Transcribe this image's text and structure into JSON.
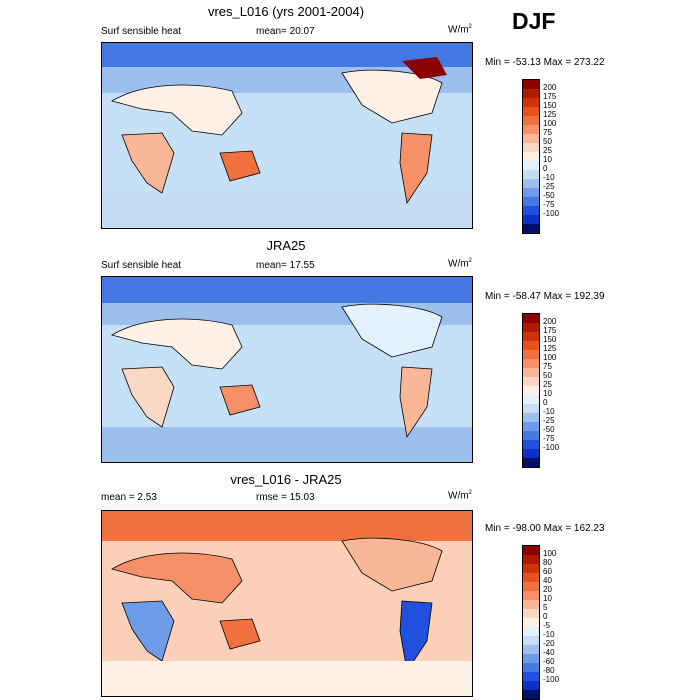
{
  "season": "DJF",
  "panels": [
    {
      "title": "vres_L016 (yrs 2001-2004)",
      "left_label": "Surf sensible heat",
      "center_label": "mean=  20.07",
      "units": "W/m",
      "units_sup": "2",
      "minmax": "Min = -53.13 Max = 273.22",
      "colorbar_labels": [
        "200",
        "175",
        "150",
        "125",
        "100",
        "75",
        "50",
        "25",
        "10",
        "0",
        "-10",
        "-25",
        "-50",
        "-75",
        "-100"
      ]
    },
    {
      "title": "JRA25",
      "left_label": "Surf sensible heat",
      "center_label": "mean=  17.55",
      "units": "W/m",
      "units_sup": "2",
      "minmax": "Min = -58.47 Max = 192.39",
      "colorbar_labels": [
        "200",
        "175",
        "150",
        "125",
        "100",
        "75",
        "50",
        "25",
        "10",
        "0",
        "-10",
        "-25",
        "-50",
        "-75",
        "-100"
      ]
    },
    {
      "title": "vres_L016 - JRA25",
      "left_label": "mean =   2.53",
      "center_label": "rmse =  15.03",
      "units": "W/m",
      "units_sup": "2",
      "minmax": "Min = -98.00 Max = 162.23",
      "colorbar_labels": [
        "100",
        "80",
        "60",
        "40",
        "20",
        "10",
        "5",
        "0",
        "-5",
        "-10",
        "-20",
        "-40",
        "-60",
        "-80",
        "-100"
      ]
    }
  ],
  "colors": {
    "absolute_scale": [
      "#8b0000",
      "#b01a00",
      "#d0300a",
      "#e8501e",
      "#f07040",
      "#f59068",
      "#f8b898",
      "#fbd8c4",
      "#fdf0e6",
      "#e4f0fa",
      "#c4dcf4",
      "#9cc0ee",
      "#6e9ce8",
      "#4678e4",
      "#2050dc",
      "#0a30c8",
      "#00106a"
    ],
    "difference_scale": [
      "#8b0000",
      "#b01a00",
      "#d0300a",
      "#e8501e",
      "#f07040",
      "#f59068",
      "#f8b898",
      "#fbd8c4",
      "#fdf0e6",
      "#e4f0fa",
      "#c4dcf4",
      "#9cc0ee",
      "#6e9ce8",
      "#4678e4",
      "#2050dc",
      "#0a30c8",
      "#00106a"
    ],
    "ocean_base": "#c6e0f6",
    "diff_base": "#fbd0b8"
  }
}
